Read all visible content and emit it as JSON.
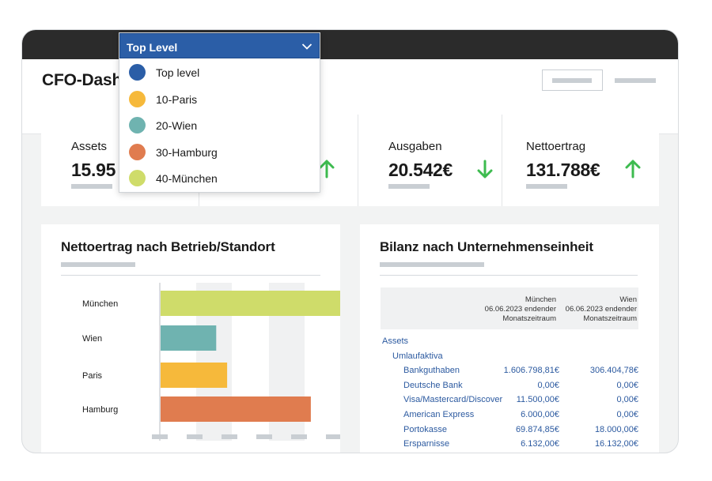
{
  "header": {
    "title": "CFO-Dashboard"
  },
  "kpis": [
    {
      "label": "Assets",
      "value": "15.95"
    },
    {
      "label": "",
      "value": "",
      "trend": "up"
    },
    {
      "label": "Ausgaben",
      "value": "20.542€",
      "trend": "down"
    },
    {
      "label": "Nettoertrag",
      "value": "131.788€",
      "trend": "up"
    }
  ],
  "colors": {
    "up": "#3dbb4f",
    "down": "#3dbb4f",
    "accent": "#2b5ea7",
    "link": "#2c5aa0"
  },
  "dropdown": {
    "selected": "Top Level",
    "items": [
      {
        "label": "Top level",
        "color": "#2b5ea7"
      },
      {
        "label": "10-Paris",
        "color": "#f6b93b"
      },
      {
        "label": "20-Wien",
        "color": "#6fb3b0"
      },
      {
        "label": "30-Hamburg",
        "color": "#e07c4f"
      },
      {
        "label": "40-München",
        "color": "#cfdc6a"
      }
    ]
  },
  "chart_card": {
    "title": "Nettoertrag nach Betrieb/Standort"
  },
  "chart_data": {
    "type": "bar",
    "orientation": "horizontal",
    "categories": [
      "München",
      "Wien",
      "Paris",
      "Hamburg"
    ],
    "values": [
      100,
      31,
      37,
      83
    ],
    "colors": [
      "#cfdc6a",
      "#6fb3b0",
      "#f6b93b",
      "#e07c4f"
    ],
    "xlim": [
      0,
      100
    ],
    "grid": true
  },
  "table_card": {
    "title": "Bilanz nach Unternehmenseinheit",
    "columns": [
      {
        "line1": "München",
        "line2": "06.06.2023 endender",
        "line3": "Monatszeitraum"
      },
      {
        "line1": "Wien",
        "line2": "06.06.2023 endender",
        "line3": "Monatszeitraum"
      }
    ],
    "rows": [
      {
        "label": "Assets",
        "level": 0,
        "v1": "",
        "v2": ""
      },
      {
        "label": "Umlaufaktiva",
        "level": 1,
        "v1": "",
        "v2": ""
      },
      {
        "label": "Bankguthaben",
        "level": 2,
        "v1": "1.606.798,81€",
        "v2": "306.404,78€"
      },
      {
        "label": "Deutsche Bank",
        "level": 2,
        "v1": "0,00€",
        "v2": "0,00€"
      },
      {
        "label": "Visa/Mastercard/Discover",
        "level": 2,
        "v1": "11.500,00€",
        "v2": "0,00€"
      },
      {
        "label": "American Express",
        "level": 2,
        "v1": "6.000,00€",
        "v2": "0,00€"
      },
      {
        "label": "Portokasse",
        "level": 2,
        "v1": "69.874,85€",
        "v2": "18.000,00€"
      },
      {
        "label": "Ersparnisse",
        "level": 2,
        "v1": "6.132,00€",
        "v2": "16.132,00€"
      }
    ]
  }
}
